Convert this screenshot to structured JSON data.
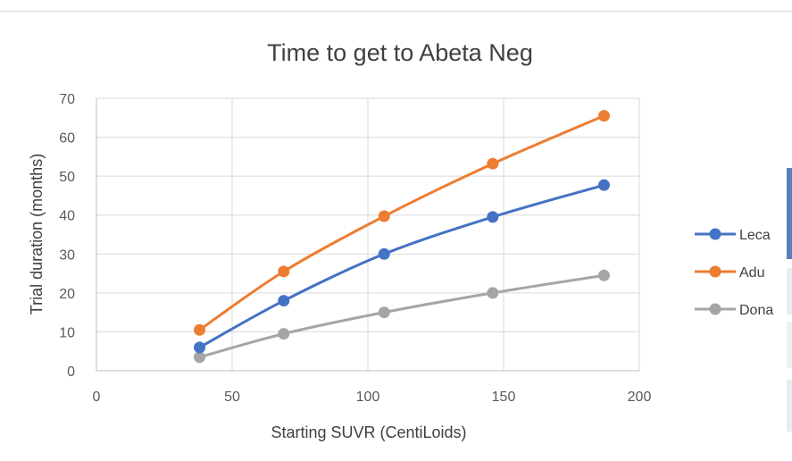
{
  "chart_data": {
    "type": "line",
    "title": "Time to get to Abeta Neg",
    "xlabel": "Starting SUVR (CentiLoids)",
    "ylabel": "Trial duration (months)",
    "xlim": [
      0,
      200
    ],
    "ylim": [
      0,
      70
    ],
    "xticks": [
      0,
      50,
      100,
      150,
      200
    ],
    "yticks": [
      0,
      10,
      20,
      30,
      40,
      50,
      60,
      70
    ],
    "grid": true,
    "legend_position": "right",
    "x": [
      38,
      69,
      106,
      146,
      187
    ],
    "series": [
      {
        "name": "Leca",
        "color": "#4472c4",
        "values": [
          6,
          18,
          30,
          39.5,
          47.7
        ]
      },
      {
        "name": "Adu",
        "color": "#ed7d31",
        "values": [
          10.5,
          25.5,
          39.7,
          53.2,
          65.5
        ]
      },
      {
        "name": "Dona",
        "color": "#a5a5a5",
        "values": [
          3.5,
          9.5,
          15,
          20,
          24.5
        ]
      }
    ]
  }
}
